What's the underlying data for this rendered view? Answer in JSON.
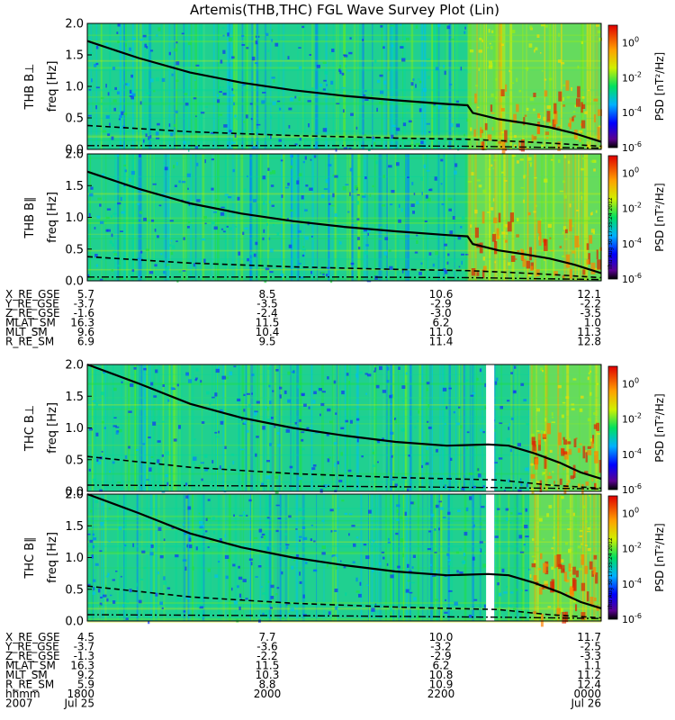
{
  "chart_data": {
    "type": "heatmap",
    "title": "Artemis(THB,THC) FGL Wave Survey Plot (Lin)",
    "timestamp": "Thu Aug 30 17:35:24 2012",
    "colorbar_label": "PSD [nT²/Hz]",
    "colorbar_exponents": [
      "0",
      "-2",
      "-4",
      "-6"
    ],
    "colorbar_range": [
      -6,
      1
    ],
    "ylim": [
      0,
      2.0
    ],
    "y_ticks": [
      "0.0",
      "0.5",
      "1.0",
      "1.5",
      "2.0"
    ],
    "panels": [
      {
        "id": "thb-bperp",
        "label": "THB B⊥",
        "ylabel": "freq [Hz]",
        "cyclotron_curve": [
          [
            0,
            1.72
          ],
          [
            0.1,
            1.45
          ],
          [
            0.2,
            1.22
          ],
          [
            0.3,
            1.06
          ],
          [
            0.4,
            0.94
          ],
          [
            0.5,
            0.85
          ],
          [
            0.6,
            0.78
          ],
          [
            0.7,
            0.72
          ],
          [
            0.74,
            0.7
          ],
          [
            0.75,
            0.58
          ],
          [
            0.8,
            0.48
          ],
          [
            0.85,
            0.42
          ],
          [
            0.9,
            0.35
          ],
          [
            0.95,
            0.25
          ],
          [
            1.0,
            0.12
          ]
        ],
        "half_curve": [
          [
            0,
            0.38
          ],
          [
            0.2,
            0.28
          ],
          [
            0.4,
            0.22
          ],
          [
            0.6,
            0.18
          ],
          [
            0.74,
            0.16
          ],
          [
            0.8,
            0.14
          ],
          [
            0.9,
            0.1
          ],
          [
            1.0,
            0.05
          ]
        ],
        "floor_curve": [
          [
            0,
            0.06
          ],
          [
            0.5,
            0.06
          ],
          [
            0.74,
            0.05
          ],
          [
            1.0,
            0.02
          ]
        ],
        "data_gap": null,
        "active_from": 0.74
      },
      {
        "id": "thb-bpar",
        "label": "THB B∥",
        "ylabel": "freq [Hz]",
        "cyclotron_curve": [
          [
            0,
            1.72
          ],
          [
            0.1,
            1.45
          ],
          [
            0.2,
            1.22
          ],
          [
            0.3,
            1.06
          ],
          [
            0.4,
            0.94
          ],
          [
            0.5,
            0.85
          ],
          [
            0.6,
            0.78
          ],
          [
            0.7,
            0.72
          ],
          [
            0.74,
            0.7
          ],
          [
            0.75,
            0.58
          ],
          [
            0.8,
            0.48
          ],
          [
            0.85,
            0.42
          ],
          [
            0.9,
            0.35
          ],
          [
            0.95,
            0.25
          ],
          [
            1.0,
            0.12
          ]
        ],
        "half_curve": [
          [
            0,
            0.38
          ],
          [
            0.2,
            0.28
          ],
          [
            0.4,
            0.22
          ],
          [
            0.6,
            0.18
          ],
          [
            0.74,
            0.16
          ],
          [
            0.8,
            0.14
          ],
          [
            0.9,
            0.1
          ],
          [
            1.0,
            0.05
          ]
        ],
        "floor_curve": [
          [
            0,
            0.06
          ],
          [
            0.5,
            0.06
          ],
          [
            0.74,
            0.05
          ],
          [
            1.0,
            0.02
          ]
        ],
        "data_gap": null,
        "active_from": 0.74
      },
      {
        "id": "thc-bperp",
        "label": "THC B⊥",
        "ylabel": "freq [Hz]",
        "cyclotron_curve": [
          [
            0,
            2.1
          ],
          [
            0.1,
            1.7
          ],
          [
            0.2,
            1.38
          ],
          [
            0.3,
            1.16
          ],
          [
            0.4,
            1.0
          ],
          [
            0.5,
            0.88
          ],
          [
            0.6,
            0.78
          ],
          [
            0.7,
            0.72
          ],
          [
            0.78,
            0.74
          ],
          [
            0.82,
            0.72
          ],
          [
            0.87,
            0.6
          ],
          [
            0.92,
            0.45
          ],
          [
            0.96,
            0.3
          ],
          [
            1.0,
            0.2
          ]
        ],
        "half_curve": [
          [
            0,
            0.55
          ],
          [
            0.2,
            0.38
          ],
          [
            0.4,
            0.28
          ],
          [
            0.6,
            0.22
          ],
          [
            0.8,
            0.18
          ],
          [
            0.9,
            0.1
          ],
          [
            1.0,
            0.05
          ]
        ],
        "floor_curve": [
          [
            0,
            0.1
          ],
          [
            0.5,
            0.08
          ],
          [
            0.8,
            0.06
          ],
          [
            1.0,
            0.04
          ]
        ],
        "data_gap": [
          0.776,
          0.792
        ],
        "active_from": 0.86
      },
      {
        "id": "thc-bpar",
        "label": "THC B∥",
        "ylabel": "freq [Hz]",
        "cyclotron_curve": [
          [
            0,
            2.1
          ],
          [
            0.1,
            1.7
          ],
          [
            0.2,
            1.38
          ],
          [
            0.3,
            1.16
          ],
          [
            0.4,
            1.0
          ],
          [
            0.5,
            0.88
          ],
          [
            0.6,
            0.78
          ],
          [
            0.7,
            0.72
          ],
          [
            0.78,
            0.74
          ],
          [
            0.82,
            0.72
          ],
          [
            0.87,
            0.6
          ],
          [
            0.92,
            0.45
          ],
          [
            0.96,
            0.3
          ],
          [
            1.0,
            0.2
          ]
        ],
        "half_curve": [
          [
            0,
            0.55
          ],
          [
            0.2,
            0.38
          ],
          [
            0.4,
            0.28
          ],
          [
            0.6,
            0.22
          ],
          [
            0.8,
            0.18
          ],
          [
            0.9,
            0.1
          ],
          [
            1.0,
            0.05
          ]
        ],
        "floor_curve": [
          [
            0,
            0.1
          ],
          [
            0.5,
            0.08
          ],
          [
            0.8,
            0.06
          ],
          [
            1.0,
            0.04
          ]
        ],
        "data_gap": [
          0.776,
          0.792
        ],
        "active_from": 0.86
      }
    ],
    "ephemeris": [
      {
        "id": "thb",
        "labels": [
          "X_RE_GSE",
          "Y_RE_GSE",
          "Z_RE_GSE",
          "MLAT_SM",
          "MLT_SM",
          "R_RE_SM"
        ],
        "columns": [
          [
            "5.7",
            "-3.7",
            "-1.6",
            "16.3",
            "9.6",
            "6.9"
          ],
          [
            "8.5",
            "-3.5",
            "-2.4",
            "11.5",
            "10.4",
            "9.5"
          ],
          [
            "10.6",
            "-2.9",
            "-3.0",
            "6.2",
            "11.0",
            "11.4"
          ],
          [
            "12.1",
            "-2.2",
            "-3.5",
            "1.0",
            "11.3",
            "12.8"
          ]
        ]
      },
      {
        "id": "thc",
        "labels": [
          "X_RE_GSE",
          "Y_RE_GSE",
          "Z_RE_GSE",
          "MLAT_SM",
          "MLT_SM",
          "R_RE_SM",
          "hhmm",
          "2007"
        ],
        "columns": [
          [
            "4.5",
            "-3.7",
            "-1.3",
            "16.3",
            "9.2",
            "5.9",
            "1800",
            "Jul 25"
          ],
          [
            "7.7",
            "-3.6",
            "-2.2",
            "11.5",
            "10.3",
            "8.8",
            "2000",
            ""
          ],
          [
            "10.0",
            "-3.2",
            "-2.9",
            "6.2",
            "10.8",
            "10.9",
            "2200",
            ""
          ],
          [
            "11.7",
            "-2.5",
            "-3.3",
            "1.1",
            "11.2",
            "12.4",
            "0000",
            "Jul 26"
          ]
        ]
      }
    ],
    "colors": {
      "curve": "#000000",
      "gap": "#ffffff",
      "background": "#ffffff"
    }
  }
}
